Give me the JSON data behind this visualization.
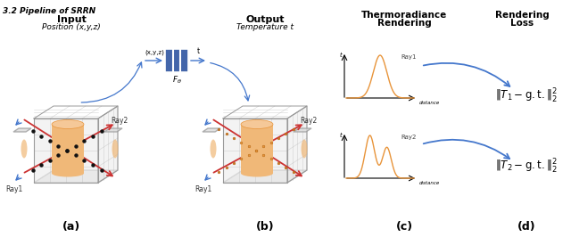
{
  "title_text": "3.2 Pipeline of SRRN",
  "label_a": "(a)",
  "label_b": "(b)",
  "label_c": "(c)",
  "label_d": "(d)",
  "input_title": "Input",
  "input_subtitle": "Position (x,y,z)",
  "output_title": "Output",
  "output_subtitle": "Temperature t",
  "thermo_title1": "Thermoradiance",
  "thermo_title2": "Rendering",
  "render_loss_title1": "Rendering",
  "render_loss_title2": "Loss",
  "ray1_label": "Ray1",
  "ray2_label": "Ray2",
  "distance_label": "distance",
  "t_label": "t",
  "formula1": "$\\| T_1 - \\mathrm{g.t.}\\|_2^2$",
  "formula2": "$\\| T_2 - \\mathrm{g.t.}\\|_2^2$",
  "nn_label": "$F_\\theta$",
  "orange_color": "#E8943A",
  "orange_fill": "#F0B878",
  "orange_light": "#F5C898",
  "box_face": "#D8D8D8",
  "box_edge": "#999999",
  "ray_color": "#CC3333",
  "blue_arrow_color": "#4477CC",
  "nn_blue": "#4466AA",
  "background": "#FFFFFF",
  "grid_color": "#BBBBBB"
}
